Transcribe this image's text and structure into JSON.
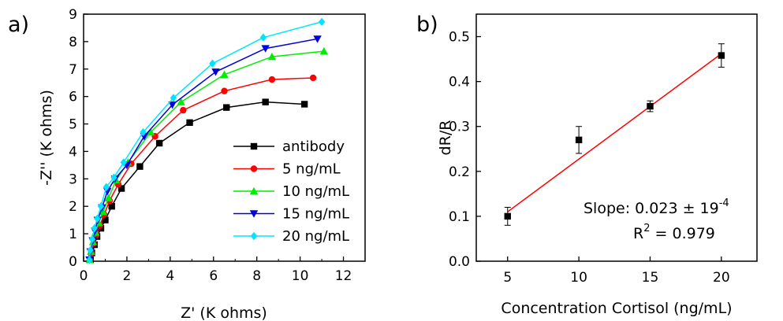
{
  "chart_data": [
    {
      "panel_label": "a)",
      "type": "line",
      "xlabel": "Z' (K ohms)",
      "ylabel": "-Z'' (K ohms)",
      "xlim": [
        0,
        13
      ],
      "ylim": [
        0,
        9
      ],
      "xticks": [
        "0",
        "2",
        "4",
        "6",
        "8",
        "10",
        "12"
      ],
      "yticks": [
        "0",
        "1",
        "2",
        "3",
        "4",
        "5",
        "6",
        "7",
        "8",
        "9"
      ],
      "legend_position": "bottom-right",
      "series": [
        {
          "name": "antibody",
          "color": "#000000",
          "marker": "square",
          "points": [
            [
              0.32,
              0.05
            ],
            [
              0.38,
              0.3
            ],
            [
              0.5,
              0.6
            ],
            [
              0.62,
              0.9
            ],
            [
              0.8,
              1.2
            ],
            [
              1.0,
              1.5
            ],
            [
              1.3,
              2.0
            ],
            [
              1.75,
              2.65
            ],
            [
              2.6,
              3.45
            ],
            [
              3.5,
              4.3
            ],
            [
              4.9,
              5.05
            ],
            [
              6.6,
              5.6
            ],
            [
              8.4,
              5.8
            ],
            [
              10.2,
              5.72
            ]
          ]
        },
        {
          "name": "5 ng/mL",
          "color": "#ff0000",
          "marker": "circle",
          "points": [
            [
              0.3,
              0.05
            ],
            [
              0.36,
              0.3
            ],
            [
              0.46,
              0.65
            ],
            [
              0.58,
              0.95
            ],
            [
              0.75,
              1.3
            ],
            [
              0.95,
              1.7
            ],
            [
              1.2,
              2.2
            ],
            [
              1.6,
              2.8
            ],
            [
              2.2,
              3.55
            ],
            [
              3.3,
              4.55
            ],
            [
              4.6,
              5.5
            ],
            [
              6.5,
              6.2
            ],
            [
              8.7,
              6.62
            ],
            [
              10.6,
              6.68
            ]
          ]
        },
        {
          "name": "10 ng/mL",
          "color": "#00ee00",
          "marker": "triangle-up",
          "points": [
            [
              0.28,
              0.05
            ],
            [
              0.34,
              0.35
            ],
            [
              0.44,
              0.7
            ],
            [
              0.55,
              1.05
            ],
            [
              0.7,
              1.4
            ],
            [
              0.9,
              1.8
            ],
            [
              1.15,
              2.3
            ],
            [
              1.5,
              2.95
            ],
            [
              2.05,
              3.6
            ],
            [
              3.1,
              4.7
            ],
            [
              4.5,
              5.8
            ],
            [
              6.5,
              6.8
            ],
            [
              8.7,
              7.45
            ],
            [
              11.1,
              7.65
            ]
          ]
        },
        {
          "name": "15 ng/mL",
          "color": "#0000dd",
          "marker": "triangle-down",
          "points": [
            [
              0.27,
              0.05
            ],
            [
              0.32,
              0.35
            ],
            [
              0.42,
              0.75
            ],
            [
              0.52,
              1.1
            ],
            [
              0.65,
              1.5
            ],
            [
              0.85,
              1.95
            ],
            [
              1.1,
              2.55
            ],
            [
              1.45,
              3.0
            ],
            [
              2.0,
              3.5
            ],
            [
              2.8,
              4.55
            ],
            [
              4.1,
              5.7
            ],
            [
              6.1,
              6.9
            ],
            [
              8.4,
              7.75
            ],
            [
              10.8,
              8.1
            ]
          ]
        },
        {
          "name": "20 ng/mL",
          "color": "#00e5ff",
          "marker": "diamond",
          "points": [
            [
              0.27,
              0.05
            ],
            [
              0.31,
              0.4
            ],
            [
              0.4,
              0.8
            ],
            [
              0.5,
              1.2
            ],
            [
              0.63,
              1.55
            ],
            [
              0.8,
              2.0
            ],
            [
              1.05,
              2.7
            ],
            [
              1.4,
              3.05
            ],
            [
              1.85,
              3.6
            ],
            [
              2.75,
              4.7
            ],
            [
              4.15,
              5.95
            ],
            [
              5.95,
              7.2
            ],
            [
              8.3,
              8.15
            ],
            [
              11.0,
              8.72
            ]
          ]
        }
      ]
    },
    {
      "panel_label": "b)",
      "type": "scatter",
      "xlabel": "Concentration Cortisol (ng/mL)",
      "ylabel": "dR/R",
      "xlim": [
        2.8,
        22.5
      ],
      "ylim": [
        0,
        0.55
      ],
      "xticks": [
        "5",
        "10",
        "15",
        "20"
      ],
      "yticks": [
        "0.0",
        "0.1",
        "0.2",
        "0.3",
        "0.4",
        "0.5"
      ],
      "color_points": "#000000",
      "color_fit": "#ff0000",
      "points": [
        {
          "x": 5,
          "y": 0.1,
          "err": 0.02
        },
        {
          "x": 10,
          "y": 0.27,
          "err": 0.03
        },
        {
          "x": 15,
          "y": 0.345,
          "err": 0.012
        },
        {
          "x": 20,
          "y": 0.458,
          "err": 0.026
        }
      ],
      "fit_line": [
        [
          5,
          0.11
        ],
        [
          20,
          0.462
        ]
      ],
      "slope_label": "Slope: 0.023 ± 19",
      "slope_sup": "-4",
      "r2_prefix": "R",
      "r2_sup": "2",
      "r2_suffix": " = 0.979"
    }
  ]
}
